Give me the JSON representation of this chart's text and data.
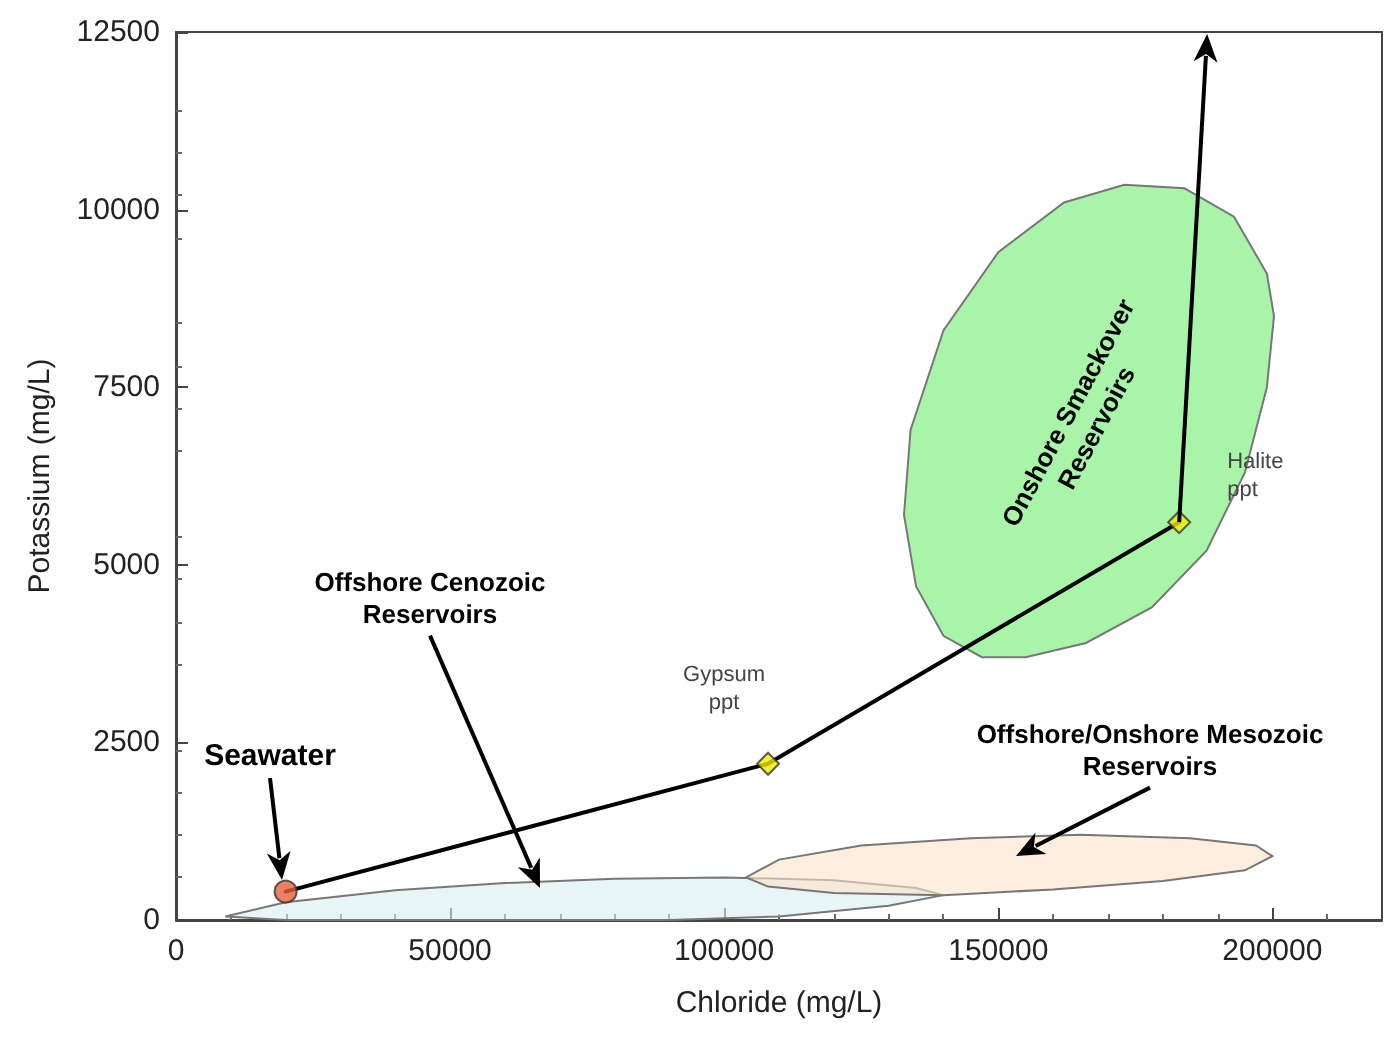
{
  "chart_data": {
    "type": "line",
    "xlabel": "Chloride (mg/L)",
    "ylabel": "Potassium (mg/L)",
    "xlim": [
      0,
      220000
    ],
    "xticks": [
      0,
      50000,
      100000,
      150000,
      200000
    ],
    "ylim": [
      0,
      12500
    ],
    "yticks": [
      0,
      2500,
      5000,
      7500,
      10000,
      12500
    ],
    "series": [
      {
        "type": "area",
        "color": "#d9eff1",
        "x": [
          9000,
          20000,
          40000,
          60000,
          80000,
          100000,
          120000,
          135000,
          140000,
          130000,
          110000,
          90000,
          50000,
          20000,
          9000
        ],
        "values": [
          50,
          250,
          420,
          520,
          580,
          600,
          560,
          450,
          350,
          200,
          50,
          0,
          0,
          0,
          50
        ]
      },
      {
        "type": "area",
        "color": "#fde2c6",
        "x": [
          104000,
          110000,
          125000,
          145000,
          165000,
          185000,
          197000,
          200000,
          195000,
          180000,
          160000,
          140000,
          120000,
          108000,
          104000
        ],
        "values": [
          600,
          850,
          1050,
          1150,
          1200,
          1150,
          1050,
          900,
          700,
          550,
          430,
          350,
          380,
          470,
          600
        ]
      },
      {
        "type": "area",
        "color": "#6eed6e",
        "x": [
          184000,
          193000,
          199000,
          200300,
          199000,
          195000,
          188000,
          178000,
          166000,
          155000,
          147000,
          140000,
          135000,
          132800,
          134000,
          140000,
          150000,
          162000,
          173000,
          184000
        ],
        "values": [
          10300,
          9900,
          9100,
          8500,
          7500,
          6300,
          5200,
          4400,
          3900,
          3700,
          3700,
          4000,
          4700,
          5700,
          6900,
          8300,
          9400,
          10100,
          10350,
          10300
        ]
      },
      {
        "color": "#000000",
        "marker": "none",
        "x": [
          20000,
          108000,
          183000
        ],
        "values": [
          400,
          2200,
          5600
        ]
      },
      {
        "type": "scatter",
        "color": "#e8603c",
        "marker": "circle",
        "x": [
          20000
        ],
        "values": [
          400
        ]
      },
      {
        "type": "scatter",
        "color": "#f2ea00",
        "marker": "diamond",
        "x": [
          108000,
          183000
        ],
        "values": [
          2200,
          5600
        ]
      }
    ],
    "annotations": [
      "Seawater",
      "Offshore Cenozoic\nReservoirs",
      "Offshore/Onshore Mesozoic\nReservoirs",
      "Onshore Smackover\nReservoirs",
      {
        "text": "Gypsum\nppt",
        "x": 108000,
        "y": 2200
      },
      {
        "text": "Halite\nppt",
        "x": 183000,
        "y": 5600
      }
    ]
  }
}
